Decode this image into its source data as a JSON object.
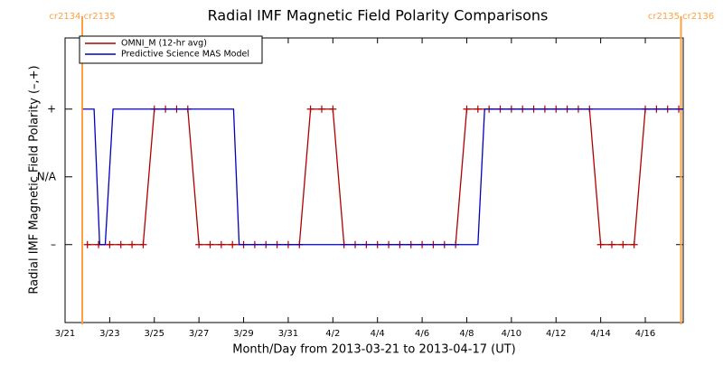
{
  "chart_data": {
    "type": "line",
    "title": "Radial IMF Magnetic Field Polarity Comparisons",
    "x_label": "Month/Day from 2013-03-21 to 2013-04-17 (UT)",
    "y_label": "Radial IMF Magnetic Field Polarity (–,+)",
    "xlim": [
      0,
      27.7
    ],
    "ylim": [
      -2.15,
      2.05
    ],
    "xticks": [
      {
        "value": 0,
        "label": "3/21"
      },
      {
        "value": 2,
        "label": "3/23"
      },
      {
        "value": 4,
        "label": "3/25"
      },
      {
        "value": 6,
        "label": "3/27"
      },
      {
        "value": 8,
        "label": "3/29"
      },
      {
        "value": 10,
        "label": "3/31"
      },
      {
        "value": 12,
        "label": "4/2"
      },
      {
        "value": 14,
        "label": "4/4"
      },
      {
        "value": 16,
        "label": "4/6"
      },
      {
        "value": 18,
        "label": "4/8"
      },
      {
        "value": 20,
        "label": "4/10"
      },
      {
        "value": 22,
        "label": "4/12"
      },
      {
        "value": 24,
        "label": "4/14"
      },
      {
        "value": 26,
        "label": "4/16"
      }
    ],
    "yticks": [
      {
        "value": -1,
        "label": "–"
      },
      {
        "value": 0,
        "label": "N/A"
      },
      {
        "value": 1,
        "label": "+"
      }
    ],
    "legend": "upper-left",
    "annotations": [
      {
        "text": "cr2134 cr2135",
        "x": 0.77,
        "color": "#ffa040"
      },
      {
        "text": "cr2135 cr2136",
        "x": 27.6,
        "color": "#ffa040"
      }
    ],
    "series": [
      {
        "name": "OMNI_M (12-hr avg)",
        "color": "#b00000",
        "marker": "plus",
        "x": [
          1.0,
          1.5,
          2.0,
          2.5,
          3.0,
          3.5,
          4.0,
          4.5,
          5.0,
          5.5,
          6.0,
          6.5,
          7.0,
          7.5,
          8.0,
          8.5,
          9.0,
          9.5,
          10.0,
          10.5,
          11.0,
          11.5,
          12.0,
          12.5,
          13.0,
          13.5,
          14.0,
          14.5,
          15.0,
          15.5,
          16.0,
          16.5,
          17.0,
          17.5,
          18.0,
          18.5,
          19.0,
          19.5,
          20.0,
          20.5,
          21.0,
          21.5,
          22.0,
          22.5,
          23.0,
          23.5,
          24.0,
          24.5,
          25.0,
          25.5,
          26.0,
          26.5,
          27.0,
          27.5
        ],
        "values": [
          -1,
          -1,
          -1,
          -1,
          -1,
          -1,
          1,
          1,
          1,
          1,
          -1,
          -1,
          -1,
          -1,
          -1,
          -1,
          -1,
          -1,
          -1,
          -1,
          1,
          1,
          1,
          -1,
          -1,
          -1,
          -1,
          -1,
          -1,
          -1,
          -1,
          -1,
          -1,
          -1,
          1,
          1,
          1,
          1,
          1,
          1,
          1,
          1,
          1,
          1,
          1,
          1,
          -1,
          -1,
          -1,
          -1,
          1,
          1,
          1,
          1
        ]
      },
      {
        "name": "Predictive Science MAS Model",
        "color": "#0000c0",
        "marker": "none",
        "x": [
          0.8,
          1.3,
          1.55,
          1.8,
          2.15,
          7.55,
          7.8,
          18.5,
          18.8,
          27.7
        ],
        "values": [
          1,
          1,
          -1,
          -1,
          1,
          1,
          -1,
          -1,
          1,
          1
        ]
      }
    ]
  }
}
